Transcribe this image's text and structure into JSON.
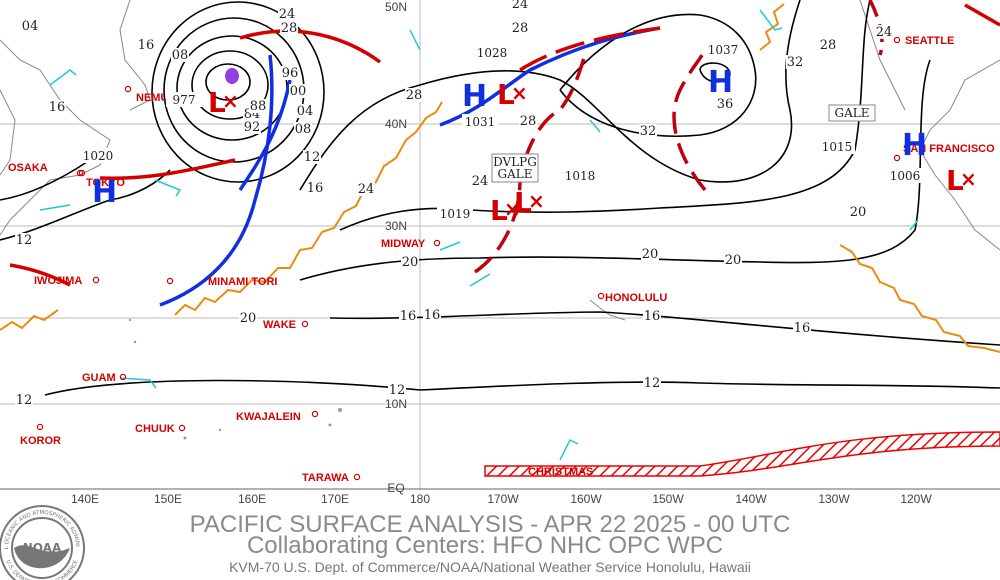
{
  "title": "PACIFIC SURFACE ANALYSIS - APR 22 2025 - 00 UTC",
  "subtitle": "Collaborating Centers:  HFO NHC OPC WPC",
  "footer": "KVM-70 U.S. Dept. of Commerce/NOAA/National Weather Service Honolulu, Hawaii",
  "logo": {
    "name": "NOAA",
    "ring_top": "NATIONAL OCEANIC AND ATMOSPHERIC ADMINISTRATION",
    "ring_bottom": "U.S. DEPARTMENT OF COMMERCE"
  },
  "longitude_labels": [
    "140E",
    "150E",
    "160E",
    "170E",
    "180",
    "170W",
    "160W",
    "150W",
    "140W",
    "130W",
    "120W"
  ],
  "latitude_labels": [
    "50N",
    "40N",
    "30N",
    "10N",
    "EQ"
  ],
  "stations": [
    "OSAKA",
    "TOKYO",
    "NEMURO",
    "IWOJIMA",
    "MINAMI TORI",
    "WAKE",
    "GUAM",
    "CHUUK",
    "KWAJALEIN",
    "KOROR",
    "TARAWA",
    "MIDWAY",
    "HONOLULU",
    "CHRISTMAS",
    "SEATTLE",
    "SAN FRANCISCO"
  ],
  "centers": [
    "H",
    "L",
    "H",
    "L",
    "H",
    "L",
    "L",
    "H",
    "L"
  ],
  "pressure_labels": [
    "1020",
    "977",
    "1028",
    "1031",
    "1037",
    "1019",
    "1018",
    "1015",
    "1006"
  ],
  "isobar_labels": [
    "04",
    "16",
    "08",
    "16",
    "84",
    "88",
    "92",
    "96",
    "00",
    "04",
    "08",
    "12",
    "16",
    "24",
    "28",
    "28",
    "24",
    "28",
    "32",
    "36",
    "28",
    "32",
    "24",
    "24",
    "20",
    "20",
    "20",
    "20",
    "16",
    "16",
    "16",
    "16",
    "12",
    "12",
    "12",
    "12",
    "24",
    "28",
    "20"
  ],
  "warnings": [
    [
      "DVLPG",
      "GALE"
    ],
    [
      "GALE"
    ]
  ]
}
